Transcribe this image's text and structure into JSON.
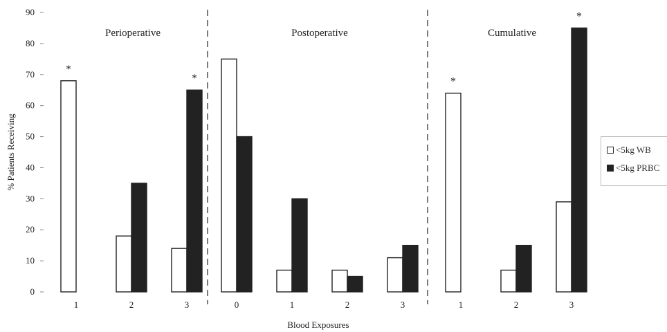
{
  "chart_data": {
    "type": "bar",
    "ylabel": "% Patients Receiving",
    "xlabel": "Blood Exposures",
    "ylim": [
      0,
      90
    ],
    "yticks": [
      "0",
      "10",
      "20",
      "30",
      "40",
      "50",
      "60",
      "70",
      "80",
      "90"
    ],
    "legend_position": "right",
    "series": [
      {
        "name": "<5kg WB",
        "color": "#ffffff"
      },
      {
        "name": "<5kg PRBC",
        "color": "#222222"
      }
    ],
    "panels": [
      {
        "title": "Perioperative",
        "categories": [
          "1",
          "2",
          "3"
        ],
        "wb": [
          68,
          18,
          14
        ],
        "prbc": [
          0,
          35,
          65
        ],
        "annotations": [
          {
            "series": "wb",
            "index": 0,
            "text": "*"
          },
          {
            "series": "prbc",
            "index": 2,
            "text": "*"
          }
        ]
      },
      {
        "title": "Postoperative",
        "categories": [
          "0",
          "1",
          "2",
          "3"
        ],
        "wb": [
          75,
          7,
          7,
          11
        ],
        "prbc": [
          50,
          30,
          5,
          15
        ],
        "annotations": []
      },
      {
        "title": "Cumulative",
        "categories": [
          "1",
          "2",
          "3"
        ],
        "wb": [
          64,
          7,
          29
        ],
        "prbc": [
          0,
          15,
          85
        ],
        "annotations": [
          {
            "series": "wb",
            "index": 0,
            "text": "*"
          },
          {
            "series": "prbc",
            "index": 2,
            "text": "*"
          }
        ]
      }
    ]
  }
}
